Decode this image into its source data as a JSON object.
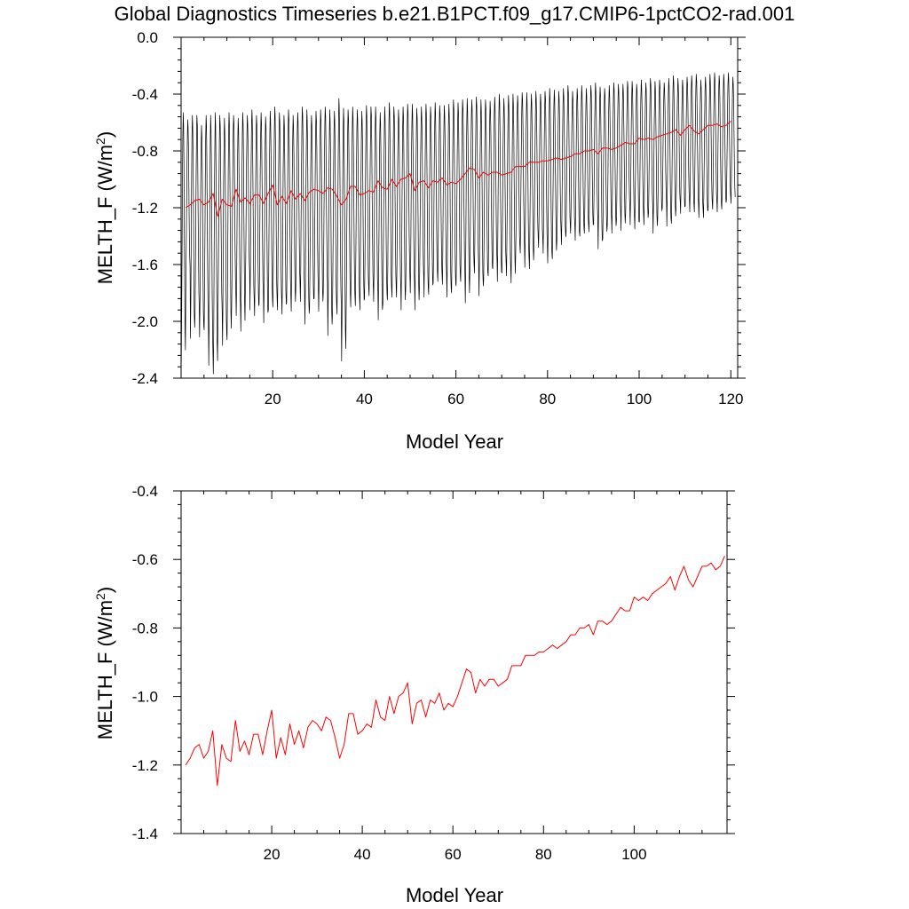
{
  "title": "Global Diagnostics Timeseries b.e21.B1PCT.f09_g17.CMIP6-1pctCO2-rad.001",
  "colors": {
    "monthly": "#000000",
    "annual": "#ff0000"
  },
  "chart_data": [
    {
      "type": "line",
      "xlabel": "Model Year",
      "ylabel": "MELTH_F (W/m²)",
      "ylabel_base": "MELTH_F (W/m",
      "ylabel_sup": "2",
      "ylabel_close": ")",
      "xlim": [
        0,
        121.5
      ],
      "ylim": [
        -2.4,
        0.0
      ],
      "xticks": [
        20,
        40,
        60,
        80,
        100,
        120
      ],
      "xtick_labels": [
        "20",
        "40",
        "60",
        "80",
        "100",
        "120"
      ],
      "yticks": [
        0.0,
        -0.4,
        -0.8,
        -1.2,
        -1.6,
        -2.0,
        -2.4
      ],
      "ytick_labels": [
        "0.0",
        "-0.4",
        "-0.8",
        "-1.2",
        "-1.6",
        "-2.0",
        "-2.4"
      ],
      "series": [
        {
          "kind": "monthly",
          "color": "#000000",
          "years": 121,
          "annual_min_y": [
            -2.29,
            -1.67,
            -2.12,
            -1.96,
            -2.11,
            -2.06,
            -2.31,
            -2.37,
            -1.98,
            -2.17,
            -2.13,
            -1.87,
            -1.96,
            -2.07,
            -1.71,
            -1.92,
            -1.96,
            -1.88,
            -2.01,
            -1.92,
            -1.9,
            -1.92,
            -1.95,
            -1.87,
            -1.93,
            -1.78,
            -1.86,
            -2.02,
            -1.91,
            -1.84,
            -1.93,
            -1.8,
            -2.1,
            -1.95,
            -1.95,
            -2.28,
            -1.89,
            -1.9,
            -1.89,
            -1.92,
            -1.84,
            -1.82,
            -1.86,
            -1.99,
            -1.88,
            -1.85,
            -1.83,
            -1.83,
            -1.92,
            -1.75,
            -1.8,
            -1.92,
            -1.74,
            -1.83,
            -1.81,
            -1.73,
            -1.72,
            -1.74,
            -1.83,
            -1.8,
            -1.75,
            -1.72,
            -1.87,
            -1.65,
            -1.66,
            -1.82,
            -1.72,
            -1.68,
            -1.63,
            -1.72,
            -1.66,
            -1.68,
            -1.73,
            -1.53,
            -1.52,
            -1.62,
            -1.63,
            -1.47,
            -1.48,
            -1.52,
            -1.59,
            -1.56,
            -1.42,
            -1.46,
            -1.38,
            -1.38,
            -1.43,
            -1.4,
            -1.38,
            -1.37,
            -1.32,
            -1.49,
            -1.42,
            -1.33,
            -1.38,
            -1.28,
            -1.36,
            -1.24,
            -1.32,
            -1.35,
            -1.3,
            -1.32,
            -1.23,
            -1.38,
            -1.27,
            -1.2,
            -1.33,
            -1.31,
            -1.21,
            -1.24,
            -1.19,
            -1.23,
            -1.23,
            -1.27,
            -1.27,
            -1.22,
            -1.21,
            -1.23,
            -1.21,
            -1.15,
            -1.17
          ],
          "annual_max_y": [
            -0.53,
            -0.58,
            -0.55,
            -0.55,
            -0.62,
            -0.55,
            -0.55,
            -0.53,
            -0.55,
            -0.57,
            -0.53,
            -0.55,
            -0.57,
            -0.53,
            -0.55,
            -0.51,
            -0.55,
            -0.53,
            -0.56,
            -0.52,
            -0.49,
            -0.53,
            -0.55,
            -0.51,
            -0.55,
            -0.53,
            -0.49,
            -0.51,
            -0.55,
            -0.52,
            -0.51,
            -0.49,
            -0.51,
            -0.52,
            -0.43,
            -0.5,
            -0.51,
            -0.49,
            -0.51,
            -0.52,
            -0.48,
            -0.49,
            -0.49,
            -0.53,
            -0.49,
            -0.46,
            -0.49,
            -0.51,
            -0.49,
            -0.47,
            -0.47,
            -0.5,
            -0.49,
            -0.47,
            -0.49,
            -0.46,
            -0.48,
            -0.48,
            -0.47,
            -0.44,
            -0.46,
            -0.44,
            -0.43,
            -0.44,
            -0.42,
            -0.44,
            -0.44,
            -0.45,
            -0.42,
            -0.4,
            -0.43,
            -0.41,
            -0.4,
            -0.41,
            -0.39,
            -0.39,
            -0.4,
            -0.38,
            -0.4,
            -0.38,
            -0.36,
            -0.37,
            -0.38,
            -0.36,
            -0.34,
            -0.38,
            -0.36,
            -0.34,
            -0.36,
            -0.34,
            -0.32,
            -0.35,
            -0.36,
            -0.34,
            -0.32,
            -0.33,
            -0.33,
            -0.31,
            -0.31,
            -0.33,
            -0.3,
            -0.32,
            -0.29,
            -0.31,
            -0.3,
            -0.32,
            -0.29,
            -0.27,
            -0.29,
            -0.3,
            -0.28,
            -0.27,
            -0.26,
            -0.3,
            -0.28,
            -0.26,
            -0.25,
            -0.27,
            -0.26,
            -0.25,
            -0.28
          ]
        },
        {
          "kind": "annual",
          "color": "#ff0000",
          "y": [
            -1.2,
            -1.18,
            -1.15,
            -1.14,
            -1.18,
            -1.16,
            -1.1,
            -1.26,
            -1.14,
            -1.18,
            -1.19,
            -1.07,
            -1.16,
            -1.13,
            -1.17,
            -1.11,
            -1.11,
            -1.17,
            -1.1,
            -1.04,
            -1.18,
            -1.12,
            -1.17,
            -1.08,
            -1.14,
            -1.1,
            -1.15,
            -1.09,
            -1.07,
            -1.08,
            -1.1,
            -1.06,
            -1.07,
            -1.12,
            -1.18,
            -1.14,
            -1.05,
            -1.05,
            -1.11,
            -1.1,
            -1.08,
            -1.09,
            -1.01,
            -1.06,
            -1.07,
            -1.0,
            -1.05,
            -1.0,
            -0.99,
            -0.96,
            -1.08,
            -1.02,
            -1.01,
            -1.06,
            -1.01,
            -1.02,
            -0.99,
            -1.04,
            -1.02,
            -1.03,
            -1.0,
            -0.96,
            -0.92,
            -0.93,
            -0.99,
            -0.95,
            -0.97,
            -0.95,
            -0.95,
            -0.97,
            -0.96,
            -0.95,
            -0.91,
            -0.91,
            -0.91,
            -0.88,
            -0.88,
            -0.88,
            -0.87,
            -0.87,
            -0.86,
            -0.85,
            -0.86,
            -0.85,
            -0.84,
            -0.82,
            -0.82,
            -0.8,
            -0.8,
            -0.79,
            -0.82,
            -0.78,
            -0.78,
            -0.79,
            -0.78,
            -0.76,
            -0.74,
            -0.75,
            -0.75,
            -0.71,
            -0.72,
            -0.71,
            -0.72,
            -0.7,
            -0.69,
            -0.68,
            -0.67,
            -0.65,
            -0.69,
            -0.65,
            -0.62,
            -0.66,
            -0.68,
            -0.65,
            -0.62,
            -0.62,
            -0.61,
            -0.63,
            -0.62,
            -0.59
          ]
        }
      ]
    },
    {
      "type": "line",
      "xlabel": "Model Year",
      "ylabel": "MELTH_F (W/m²)",
      "ylabel_base": "MELTH_F (W/m",
      "ylabel_sup": "2",
      "ylabel_close": ")",
      "xlim": [
        0,
        120.5
      ],
      "ylim": [
        -1.4,
        -0.4
      ],
      "xticks": [
        20,
        40,
        60,
        80,
        100
      ],
      "xtick_labels": [
        "20",
        "40",
        "60",
        "80",
        "100"
      ],
      "yticks": [
        -0.4,
        -0.6,
        -0.8,
        -1.0,
        -1.2,
        -1.4
      ],
      "ytick_labels": [
        "-0.4",
        "-0.6",
        "-0.8",
        "-1.0",
        "-1.2",
        "-1.4"
      ],
      "series": [
        {
          "kind": "annual",
          "color": "#ff0000",
          "y": [
            -1.2,
            -1.18,
            -1.15,
            -1.14,
            -1.18,
            -1.16,
            -1.1,
            -1.26,
            -1.14,
            -1.18,
            -1.19,
            -1.07,
            -1.16,
            -1.13,
            -1.17,
            -1.11,
            -1.11,
            -1.17,
            -1.1,
            -1.04,
            -1.18,
            -1.12,
            -1.17,
            -1.08,
            -1.14,
            -1.1,
            -1.15,
            -1.09,
            -1.07,
            -1.08,
            -1.1,
            -1.06,
            -1.07,
            -1.12,
            -1.18,
            -1.14,
            -1.05,
            -1.05,
            -1.11,
            -1.1,
            -1.08,
            -1.09,
            -1.01,
            -1.06,
            -1.07,
            -1.0,
            -1.05,
            -1.0,
            -0.99,
            -0.96,
            -1.08,
            -1.02,
            -1.01,
            -1.06,
            -1.01,
            -1.02,
            -0.99,
            -1.04,
            -1.02,
            -1.03,
            -1.0,
            -0.96,
            -0.92,
            -0.93,
            -0.99,
            -0.95,
            -0.97,
            -0.95,
            -0.95,
            -0.97,
            -0.96,
            -0.95,
            -0.91,
            -0.91,
            -0.91,
            -0.88,
            -0.88,
            -0.88,
            -0.87,
            -0.87,
            -0.86,
            -0.85,
            -0.86,
            -0.85,
            -0.84,
            -0.82,
            -0.82,
            -0.8,
            -0.8,
            -0.79,
            -0.82,
            -0.78,
            -0.78,
            -0.79,
            -0.78,
            -0.76,
            -0.74,
            -0.75,
            -0.75,
            -0.71,
            -0.72,
            -0.71,
            -0.72,
            -0.7,
            -0.69,
            -0.68,
            -0.67,
            -0.65,
            -0.69,
            -0.65,
            -0.62,
            -0.66,
            -0.68,
            -0.65,
            -0.62,
            -0.62,
            -0.61,
            -0.63,
            -0.62,
            -0.59
          ]
        }
      ]
    }
  ]
}
